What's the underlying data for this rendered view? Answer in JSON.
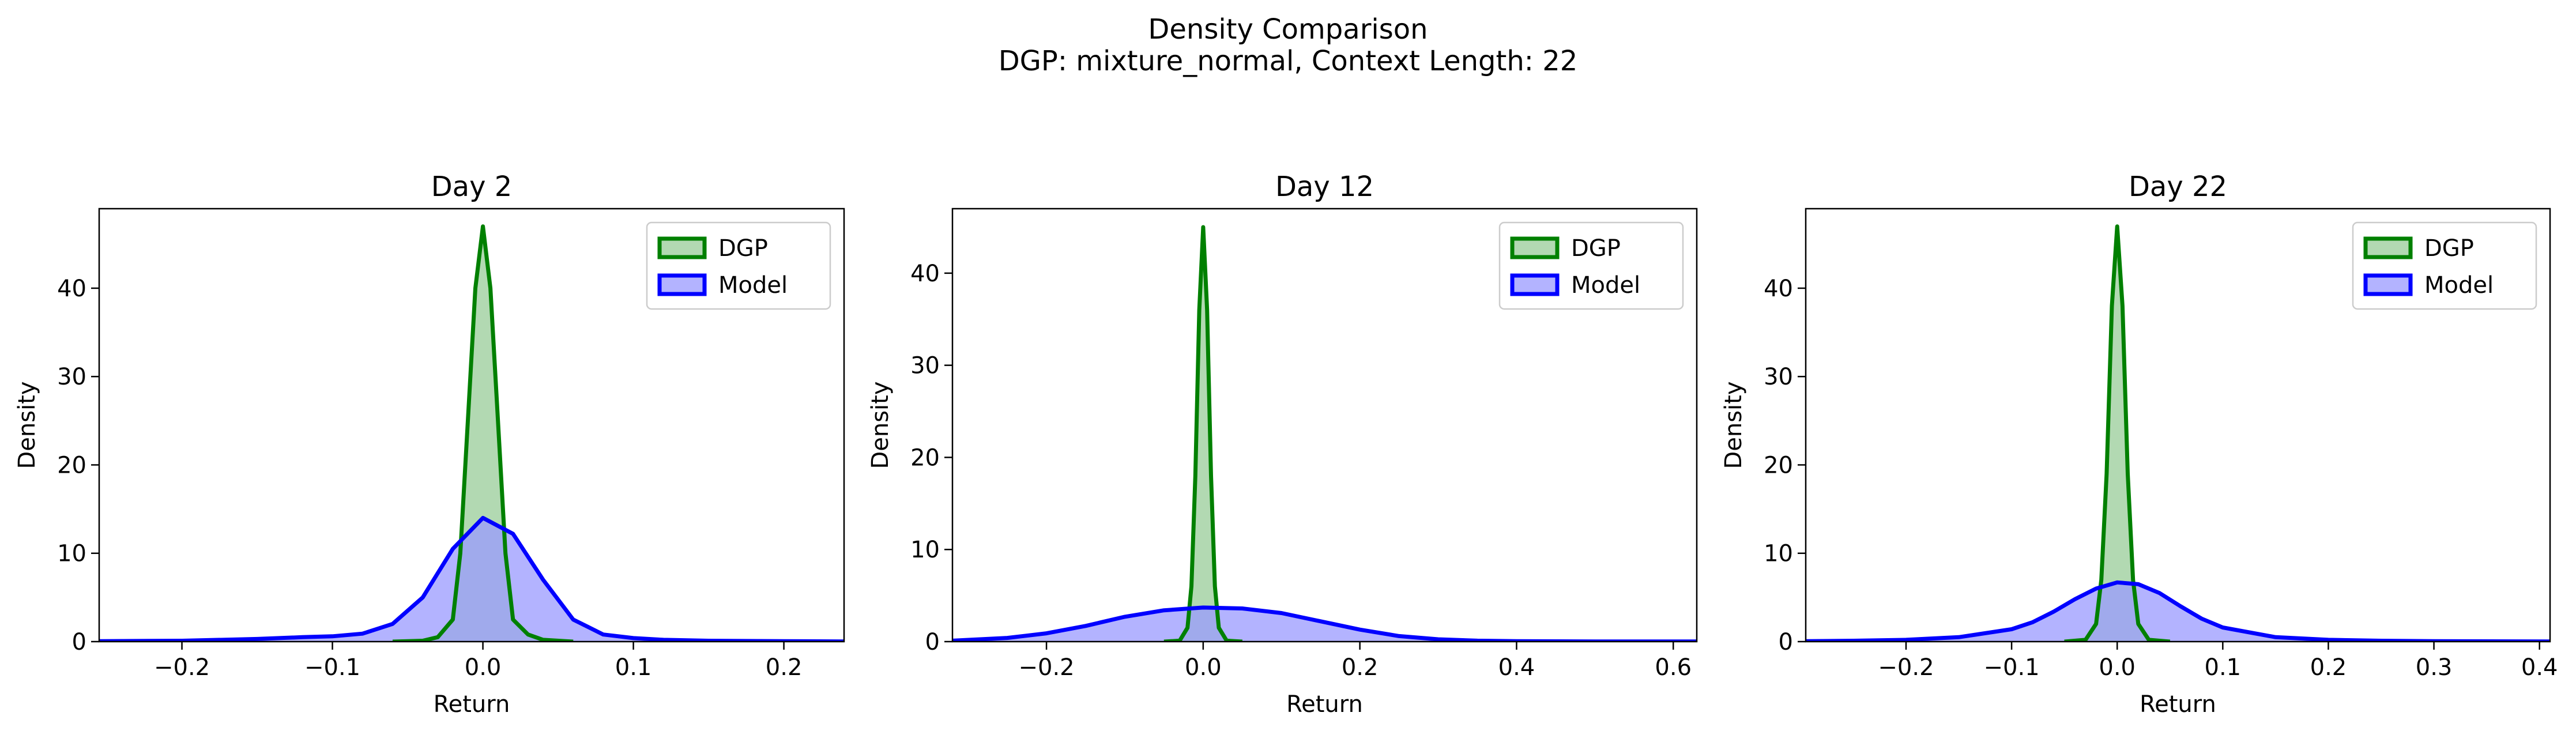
{
  "figure": {
    "title_line1": "Density Comparison",
    "title_line2": "DGP: mixture_normal, Context Length: 22"
  },
  "colors": {
    "dgp_line": "#008000",
    "dgp_fill": "#7fbf7f",
    "model_line": "#0000ff",
    "model_fill": "#9999ff"
  },
  "chart_data": [
    {
      "type": "area",
      "title": "Day 2",
      "xlabel": "Return",
      "ylabel": "Density",
      "xlim": [
        -0.255,
        0.24
      ],
      "ylim": [
        0,
        49
      ],
      "xticks": [
        -0.2,
        -0.1,
        0.0,
        0.1,
        0.2
      ],
      "xtick_labels": [
        "−0.2",
        "−0.1",
        "0.0",
        "0.1",
        "0.2"
      ],
      "yticks": [
        0,
        10,
        20,
        30,
        40
      ],
      "ytick_labels": [
        "0",
        "10",
        "20",
        "30",
        "40"
      ],
      "legend": "top-right",
      "series": [
        {
          "name": "DGP",
          "x": [
            -0.06,
            -0.04,
            -0.03,
            -0.02,
            -0.015,
            -0.01,
            -0.005,
            0.0,
            0.005,
            0.01,
            0.015,
            0.02,
            0.03,
            0.04,
            0.06
          ],
          "values": [
            0,
            0.1,
            0.5,
            2.5,
            10,
            25,
            40,
            47,
            40,
            25,
            10,
            2.5,
            0.8,
            0.2,
            0
          ]
        },
        {
          "name": "Model",
          "x": [
            -0.255,
            -0.2,
            -0.15,
            -0.12,
            -0.1,
            -0.08,
            -0.06,
            -0.04,
            -0.02,
            0.0,
            0.02,
            0.04,
            0.06,
            0.08,
            0.1,
            0.12,
            0.15,
            0.2,
            0.24
          ],
          "values": [
            0.05,
            0.1,
            0.3,
            0.5,
            0.6,
            0.9,
            2.0,
            5.0,
            10.5,
            14,
            12.2,
            7.0,
            2.5,
            0.8,
            0.4,
            0.2,
            0.1,
            0.05,
            0.02
          ]
        }
      ]
    },
    {
      "type": "area",
      "title": "Day 12",
      "xlabel": "Return",
      "ylabel": "Density",
      "xlim": [
        -0.32,
        0.63
      ],
      "ylim": [
        0,
        47
      ],
      "xticks": [
        -0.2,
        0.0,
        0.2,
        0.4,
        0.6
      ],
      "xtick_labels": [
        "−0.2",
        "0.0",
        "0.2",
        "0.4",
        "0.6"
      ],
      "yticks": [
        0,
        10,
        20,
        30,
        40
      ],
      "ytick_labels": [
        "0",
        "10",
        "20",
        "30",
        "40"
      ],
      "legend": "top-right",
      "series": [
        {
          "name": "DGP",
          "x": [
            -0.05,
            -0.03,
            -0.02,
            -0.015,
            -0.01,
            -0.005,
            0.0,
            0.005,
            0.01,
            0.015,
            0.02,
            0.03,
            0.05
          ],
          "values": [
            0,
            0.1,
            1.5,
            6,
            18,
            36,
            45,
            36,
            18,
            6,
            1.5,
            0.1,
            0
          ]
        },
        {
          "name": "Model",
          "x": [
            -0.32,
            -0.25,
            -0.2,
            -0.15,
            -0.1,
            -0.05,
            0.0,
            0.05,
            0.1,
            0.15,
            0.2,
            0.25,
            0.3,
            0.35,
            0.4,
            0.5,
            0.63
          ],
          "values": [
            0.1,
            0.4,
            0.9,
            1.7,
            2.7,
            3.4,
            3.7,
            3.6,
            3.1,
            2.2,
            1.3,
            0.6,
            0.25,
            0.1,
            0.05,
            0.02,
            0.01
          ]
        }
      ]
    },
    {
      "type": "area",
      "title": "Day 22",
      "xlabel": "Return",
      "ylabel": "Density",
      "xlim": [
        -0.295,
        0.41
      ],
      "ylim": [
        0,
        49
      ],
      "xticks": [
        -0.2,
        -0.1,
        0.0,
        0.1,
        0.2,
        0.3,
        0.4
      ],
      "xtick_labels": [
        "−0.2",
        "−0.1",
        "0.0",
        "0.1",
        "0.2",
        "0.3",
        "0.4"
      ],
      "yticks": [
        0,
        10,
        20,
        30,
        40
      ],
      "ytick_labels": [
        "0",
        "10",
        "20",
        "30",
        "40"
      ],
      "legend": "top-right",
      "series": [
        {
          "name": "DGP",
          "x": [
            -0.05,
            -0.03,
            -0.02,
            -0.015,
            -0.01,
            -0.005,
            0.0,
            0.005,
            0.01,
            0.015,
            0.02,
            0.03,
            0.05
          ],
          "values": [
            0,
            0.2,
            2,
            7,
            19,
            38,
            47,
            38,
            19,
            7,
            2,
            0.2,
            0
          ]
        },
        {
          "name": "Model",
          "x": [
            -0.295,
            -0.25,
            -0.2,
            -0.15,
            -0.1,
            -0.08,
            -0.06,
            -0.04,
            -0.02,
            0.0,
            0.02,
            0.04,
            0.06,
            0.08,
            0.1,
            0.15,
            0.2,
            0.25,
            0.3,
            0.41
          ],
          "values": [
            0.05,
            0.1,
            0.2,
            0.5,
            1.4,
            2.2,
            3.4,
            4.8,
            6.0,
            6.7,
            6.5,
            5.5,
            4.0,
            2.6,
            1.6,
            0.5,
            0.2,
            0.1,
            0.05,
            0.01
          ]
        }
      ]
    }
  ]
}
